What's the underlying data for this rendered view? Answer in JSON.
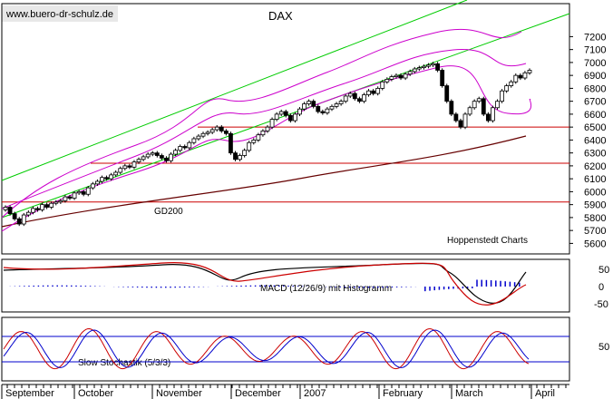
{
  "header": {
    "watermark": "www.buero-dr-schulz.de",
    "title": "DAX"
  },
  "labels": {
    "gd200": "GD200",
    "source": "Hoppenstedt Charts",
    "macd": "MACD (12/26/9) mit Histogramm",
    "stoch": "Slow Stochastik (5/3/3)"
  },
  "colors": {
    "channel": "#00cc00",
    "bollinger": "#cc00cc",
    "support": "#cc0000",
    "gd200": "#660000",
    "macd_line": "#000000",
    "signal_line": "#cc0000",
    "histogram": "#0000cc",
    "stoch_k": "#cc0000",
    "stoch_d": "#0000cc",
    "stoch_bounds": "#0000cc"
  },
  "chart_data": [
    {
      "type": "candlestick",
      "title": "DAX",
      "y_ticks": [
        5600,
        5700,
        5800,
        5900,
        6000,
        6100,
        6200,
        6300,
        6400,
        6500,
        6600,
        6700,
        6800,
        6900,
        7000,
        7100,
        7200
      ],
      "ylim": [
        5570,
        7210
      ],
      "x_ticks": [
        "September",
        "October",
        "November",
        "December",
        "2007",
        "February",
        "March",
        "April"
      ],
      "support_levels": [
        6500,
        6220,
        5920
      ],
      "closes": [
        5880,
        5830,
        5790,
        5750,
        5820,
        5840,
        5870,
        5860,
        5900,
        5880,
        5910,
        5920,
        5930,
        5960,
        5950,
        5990,
        6000,
        5980,
        6030,
        6060,
        6080,
        6110,
        6100,
        6130,
        6150,
        6180,
        6200,
        6190,
        6230,
        6250,
        6270,
        6290,
        6300,
        6280,
        6260,
        6240,
        6290,
        6320,
        6350,
        6340,
        6380,
        6410,
        6430,
        6450,
        6460,
        6480,
        6500,
        6470,
        6450,
        6300,
        6250,
        6280,
        6320,
        6380,
        6400,
        6440,
        6470,
        6500,
        6560,
        6600,
        6620,
        6590,
        6550,
        6600,
        6640,
        6680,
        6700,
        6660,
        6620,
        6610,
        6640,
        6660,
        6680,
        6700,
        6740,
        6760,
        6720,
        6700,
        6750,
        6780,
        6760,
        6800,
        6850,
        6870,
        6890,
        6900,
        6880,
        6910,
        6930,
        6950,
        6960,
        6970,
        6980,
        6990,
        6940,
        6820,
        6700,
        6600,
        6550,
        6500,
        6600,
        6650,
        6700,
        6720,
        6600,
        6550,
        6650,
        6700,
        6780,
        6820,
        6850,
        6900,
        6880,
        6920,
        6940
      ]
    },
    {
      "type": "line",
      "title": "MACD (12/26/9) mit Histogramm",
      "y_ticks": [
        50,
        0,
        -50
      ],
      "ylim": [
        -80,
        80
      ]
    },
    {
      "type": "line",
      "title": "Slow Stochastik (5/3/3)",
      "y_ticks": [
        50
      ],
      "ylim": [
        0,
        100
      ],
      "bounds": [
        80,
        20
      ]
    }
  ]
}
